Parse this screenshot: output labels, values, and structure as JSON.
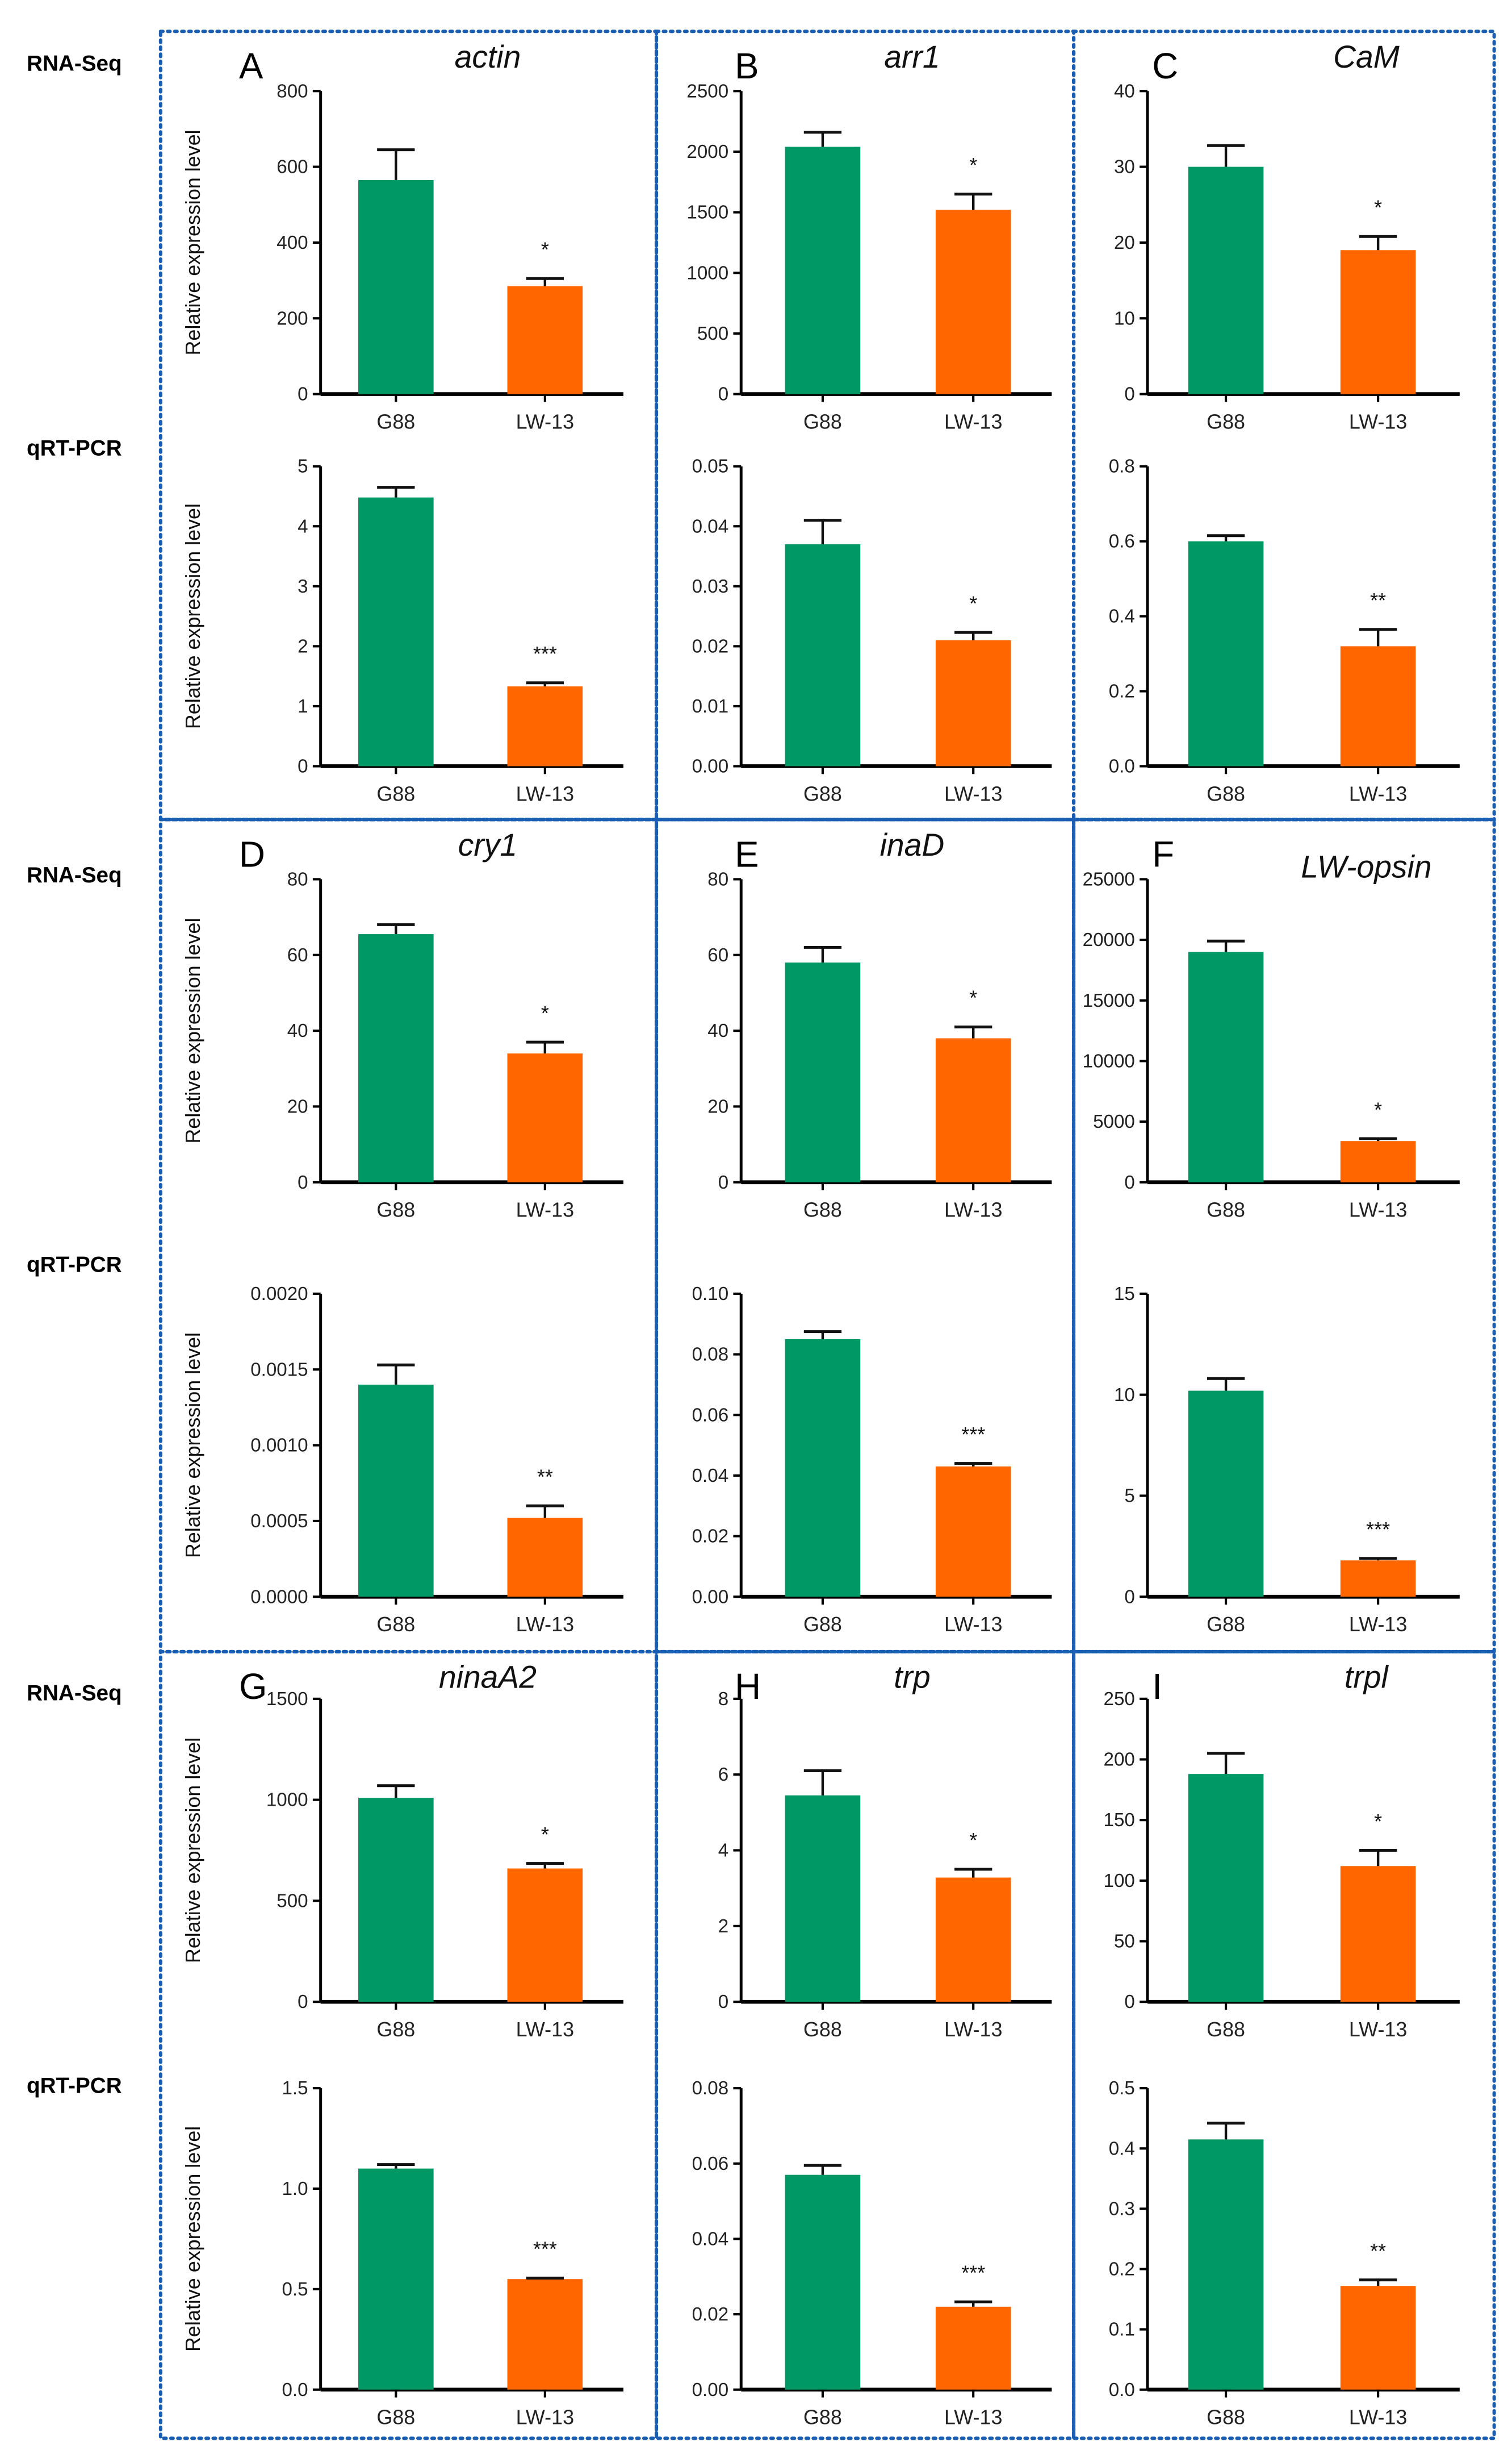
{
  "row_labels": [
    "RNA-Seq",
    "qRT-PCR",
    "RNA-Seq",
    "qRT-PCR",
    "RNA-Seq",
    "qRT-PCR"
  ],
  "colors": {
    "G88": "#009966",
    "LW-13": "#ff6600",
    "frame": "#1a5fb4"
  },
  "chart_data": [
    {
      "type": "bar",
      "panel": "A",
      "title": "actin",
      "method": "RNA-Seq",
      "ylabel": "Relative expression level",
      "categories": [
        "G88",
        "LW-13"
      ],
      "values": [
        565,
        285
      ],
      "errors": [
        80,
        20
      ],
      "significance": [
        "",
        "*"
      ],
      "ylim": [
        0,
        800
      ],
      "yticks": [
        "0",
        "200",
        "400",
        "600",
        "800"
      ]
    },
    {
      "type": "bar",
      "panel": "A",
      "title": "",
      "method": "qRT-PCR",
      "ylabel": "Relative expression level",
      "categories": [
        "G88",
        "LW-13"
      ],
      "values": [
        4.48,
        1.33
      ],
      "errors": [
        0.17,
        0.06
      ],
      "significance": [
        "",
        "***"
      ],
      "ylim": [
        0,
        5
      ],
      "yticks": [
        "0",
        "1",
        "2",
        "3",
        "4",
        "5"
      ]
    },
    {
      "type": "bar",
      "panel": "B",
      "title": "arr1",
      "method": "RNA-Seq",
      "ylabel": "",
      "categories": [
        "G88",
        "LW-13"
      ],
      "values": [
        2040,
        1520
      ],
      "errors": [
        120,
        130
      ],
      "significance": [
        "",
        "*"
      ],
      "ylim": [
        0,
        2500
      ],
      "yticks": [
        "0",
        "500",
        "1000",
        "1500",
        "2000",
        "2500"
      ]
    },
    {
      "type": "bar",
      "panel": "B",
      "title": "",
      "method": "qRT-PCR",
      "ylabel": "",
      "categories": [
        "G88",
        "LW-13"
      ],
      "values": [
        0.037,
        0.021
      ],
      "errors": [
        0.004,
        0.0013
      ],
      "significance": [
        "",
        "*"
      ],
      "ylim": [
        0,
        0.05
      ],
      "yticks": [
        "0.00",
        "0.01",
        "0.02",
        "0.03",
        "0.04",
        "0.05"
      ]
    },
    {
      "type": "bar",
      "panel": "C",
      "title": "CaM",
      "method": "RNA-Seq",
      "ylabel": "",
      "categories": [
        "G88",
        "LW-13"
      ],
      "values": [
        30,
        19
      ],
      "errors": [
        2.8,
        1.8
      ],
      "significance": [
        "",
        "*"
      ],
      "ylim": [
        0,
        40
      ],
      "yticks": [
        "0",
        "10",
        "20",
        "30",
        "40"
      ]
    },
    {
      "type": "bar",
      "panel": "C",
      "title": "",
      "method": "qRT-PCR",
      "ylabel": "",
      "categories": [
        "G88",
        "LW-13"
      ],
      "values": [
        0.6,
        0.32
      ],
      "errors": [
        0.015,
        0.045
      ],
      "significance": [
        "",
        "**"
      ],
      "ylim": [
        0,
        0.8
      ],
      "yticks": [
        "0.0",
        "0.2",
        "0.4",
        "0.6",
        "0.8"
      ]
    },
    {
      "type": "bar",
      "panel": "D",
      "title": "cry1",
      "method": "RNA-Seq",
      "ylabel": "Relative expression level",
      "categories": [
        "G88",
        "LW-13"
      ],
      "values": [
        65.5,
        34
      ],
      "errors": [
        2.5,
        3
      ],
      "significance": [
        "",
        "*"
      ],
      "ylim": [
        0,
        80
      ],
      "yticks": [
        "0",
        "20",
        "40",
        "60",
        "80"
      ]
    },
    {
      "type": "bar",
      "panel": "D",
      "title": "",
      "method": "qRT-PCR",
      "ylabel": "Relative expression level",
      "categories": [
        "G88",
        "LW-13"
      ],
      "values": [
        0.0014,
        0.00052
      ],
      "errors": [
        0.00013,
        8e-05
      ],
      "significance": [
        "",
        "**"
      ],
      "ylim": [
        0,
        0.002
      ],
      "yticks": [
        "0.0000",
        "0.0005",
        "0.0010",
        "0.0015",
        "0.0020"
      ]
    },
    {
      "type": "bar",
      "panel": "E",
      "title": "inaD",
      "method": "RNA-Seq",
      "ylabel": "",
      "categories": [
        "G88",
        "LW-13"
      ],
      "values": [
        58,
        38
      ],
      "errors": [
        4,
        3
      ],
      "significance": [
        "",
        "*"
      ],
      "ylim": [
        0,
        80
      ],
      "yticks": [
        "0",
        "20",
        "40",
        "60",
        "80"
      ]
    },
    {
      "type": "bar",
      "panel": "E",
      "title": "",
      "method": "qRT-PCR",
      "ylabel": "",
      "categories": [
        "G88",
        "LW-13"
      ],
      "values": [
        0.085,
        0.043
      ],
      "errors": [
        0.0025,
        0.001
      ],
      "significance": [
        "",
        "***"
      ],
      "ylim": [
        0,
        0.1
      ],
      "yticks": [
        "0.00",
        "0.02",
        "0.04",
        "0.06",
        "0.08",
        "0.10"
      ]
    },
    {
      "type": "bar",
      "panel": "F",
      "title": "LW-opsin",
      "method": "RNA-Seq",
      "ylabel": "",
      "categories": [
        "G88",
        "LW-13"
      ],
      "values": [
        19000,
        3400
      ],
      "errors": [
        900,
        200
      ],
      "significance": [
        "",
        "*"
      ],
      "ylim": [
        0,
        25000
      ],
      "yticks": [
        "0",
        "5000",
        "10000",
        "15000",
        "20000",
        "25000"
      ]
    },
    {
      "type": "bar",
      "panel": "F",
      "title": "",
      "method": "qRT-PCR",
      "ylabel": "",
      "categories": [
        "G88",
        "LW-13"
      ],
      "values": [
        10.2,
        1.8
      ],
      "errors": [
        0.6,
        0.1
      ],
      "significance": [
        "",
        "***"
      ],
      "ylim": [
        0,
        15
      ],
      "yticks": [
        "0",
        "5",
        "10",
        "15"
      ]
    },
    {
      "type": "bar",
      "panel": "G",
      "title": "ninaA2",
      "method": "RNA-Seq",
      "ylabel": "Relative expression level",
      "categories": [
        "G88",
        "LW-13"
      ],
      "values": [
        1010,
        660
      ],
      "errors": [
        60,
        25
      ],
      "significance": [
        "",
        "*"
      ],
      "ylim": [
        0,
        1500
      ],
      "yticks": [
        "0",
        "500",
        "1000",
        "1500"
      ]
    },
    {
      "type": "bar",
      "panel": "G",
      "title": "",
      "method": "qRT-PCR",
      "ylabel": "Relative expression level",
      "categories": [
        "G88",
        "LW-13"
      ],
      "values": [
        1.1,
        0.55
      ],
      "errors": [
        0.02,
        0.005
      ],
      "significance": [
        "",
        "***"
      ],
      "ylim": [
        0,
        1.5
      ],
      "yticks": [
        "0.0",
        "0.5",
        "1.0",
        "1.5"
      ]
    },
    {
      "type": "bar",
      "panel": "H",
      "title": "trp",
      "method": "RNA-Seq",
      "ylabel": "",
      "categories": [
        "G88",
        "LW-13"
      ],
      "values": [
        5.45,
        3.28
      ],
      "errors": [
        0.65,
        0.22
      ],
      "significance": [
        "",
        "*"
      ],
      "ylim": [
        0,
        8
      ],
      "yticks": [
        "0",
        "2",
        "4",
        "6",
        "8"
      ]
    },
    {
      "type": "bar",
      "panel": "H",
      "title": "",
      "method": "qRT-PCR",
      "ylabel": "",
      "categories": [
        "G88",
        "LW-13"
      ],
      "values": [
        0.057,
        0.022
      ],
      "errors": [
        0.0025,
        0.0013
      ],
      "significance": [
        "",
        "***"
      ],
      "ylim": [
        0,
        0.08
      ],
      "yticks": [
        "0.00",
        "0.02",
        "0.04",
        "0.06",
        "0.08"
      ]
    },
    {
      "type": "bar",
      "panel": "I",
      "title": "trpl",
      "method": "RNA-Seq",
      "ylabel": "",
      "categories": [
        "G88",
        "LW-13"
      ],
      "values": [
        188,
        112
      ],
      "errors": [
        17,
        13
      ],
      "significance": [
        "",
        "*"
      ],
      "ylim": [
        0,
        250
      ],
      "yticks": [
        "0",
        "50",
        "100",
        "150",
        "200",
        "250"
      ]
    },
    {
      "type": "bar",
      "panel": "I",
      "title": "",
      "method": "qRT-PCR",
      "ylabel": "",
      "categories": [
        "G88",
        "LW-13"
      ],
      "values": [
        0.415,
        0.172
      ],
      "errors": [
        0.027,
        0.01
      ],
      "significance": [
        "",
        "**"
      ],
      "ylim": [
        0,
        0.5
      ],
      "yticks": [
        "0.0",
        "0.1",
        "0.2",
        "0.3",
        "0.4",
        "0.5"
      ]
    }
  ]
}
